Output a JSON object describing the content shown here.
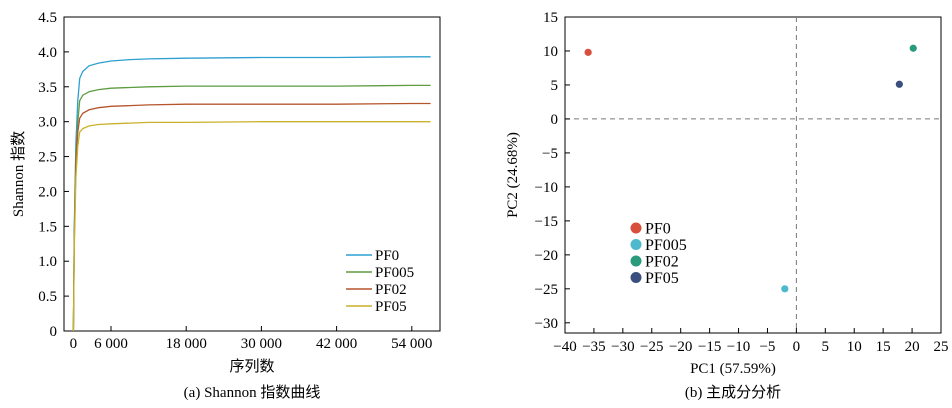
{
  "chart_data": [
    {
      "type": "line",
      "caption": "(a) Shannon 指数曲线",
      "xlabel": "序列数",
      "ylabel": "Shannon 指数",
      "xlim": [
        -1500,
        58500
      ],
      "ylim": [
        0,
        4.5
      ],
      "xticks": [
        0,
        6000,
        18000,
        30000,
        42000,
        54000
      ],
      "xtick_labels": [
        "0",
        "6 000",
        "18 000",
        "30 000",
        "42 000",
        "54 000"
      ],
      "yticks": [
        0,
        0.5,
        1.0,
        1.5,
        2.0,
        2.5,
        3.0,
        3.5,
        4.0,
        4.5
      ],
      "ytick_labels": [
        "0",
        "0.5",
        "1.0",
        "1.5",
        "2.0",
        "2.5",
        "3.0",
        "3.5",
        "4.0",
        "4.5"
      ],
      "grid": false,
      "legend_position": "bottom-right",
      "series": [
        {
          "name": "PF0",
          "color": "#2e9fd0",
          "x": [
            0,
            150,
            400,
            700,
            1000,
            1500,
            2500,
            4000,
            6000,
            9000,
            12000,
            18000,
            30000,
            42000,
            54000,
            57000
          ],
          "y": [
            0,
            1.5,
            2.7,
            3.3,
            3.62,
            3.72,
            3.8,
            3.84,
            3.87,
            3.89,
            3.9,
            3.91,
            3.92,
            3.92,
            3.93,
            3.93
          ]
        },
        {
          "name": "PF005",
          "color": "#5e9c40",
          "x": [
            0,
            150,
            400,
            700,
            1000,
            1500,
            2500,
            4000,
            6000,
            9000,
            12000,
            18000,
            30000,
            42000,
            54000,
            57000
          ],
          "y": [
            0,
            1.4,
            2.5,
            3.0,
            3.3,
            3.38,
            3.43,
            3.46,
            3.48,
            3.49,
            3.5,
            3.51,
            3.51,
            3.51,
            3.52,
            3.52
          ]
        },
        {
          "name": "PF02",
          "color": "#b5552c",
          "x": [
            0,
            150,
            400,
            700,
            1000,
            1500,
            2500,
            4000,
            6000,
            9000,
            12000,
            18000,
            30000,
            42000,
            54000,
            57000
          ],
          "y": [
            0,
            1.3,
            2.4,
            2.85,
            3.05,
            3.12,
            3.17,
            3.2,
            3.22,
            3.23,
            3.24,
            3.25,
            3.25,
            3.25,
            3.26,
            3.26
          ]
        },
        {
          "name": "PF05",
          "color": "#c8b12c",
          "x": [
            0,
            150,
            400,
            700,
            1000,
            1500,
            2500,
            4000,
            6000,
            9000,
            12000,
            18000,
            30000,
            42000,
            54000,
            57000
          ],
          "y": [
            0,
            1.2,
            2.2,
            2.65,
            2.85,
            2.9,
            2.94,
            2.96,
            2.97,
            2.98,
            2.99,
            2.99,
            3.0,
            3.0,
            3.0,
            3.0
          ]
        }
      ]
    },
    {
      "type": "scatter",
      "caption": "(b) 主成分分析",
      "xlabel": "PC1 (57.59%)",
      "ylabel": "PC2 (24.68%)",
      "xlim": [
        -40,
        25
      ],
      "ylim": [
        -31.5,
        15
      ],
      "xticks": [
        -40,
        -35,
        -30,
        -25,
        -20,
        -15,
        -10,
        -5,
        0,
        5,
        10,
        15,
        20,
        25
      ],
      "xtick_labels": [
        "−40",
        "−35",
        "−30",
        "−25",
        "−20",
        "−15",
        "−10",
        "−5",
        "0",
        "5",
        "10",
        "15",
        "20",
        "25"
      ],
      "yticks": [
        15,
        10,
        5,
        0,
        -5,
        -10,
        -15,
        -20,
        -25,
        -30
      ],
      "ytick_labels": [
        "15",
        "10",
        "5",
        "0",
        "−5",
        "−10",
        "−15",
        "−20",
        "−25",
        "−30"
      ],
      "grid": false,
      "reference_lines": {
        "x": 0,
        "y": 0,
        "style": "dashed"
      },
      "legend_position": "lower-left",
      "series": [
        {
          "name": "PF0",
          "color": "#d94f3d",
          "points": [
            [
              -36,
              9.8
            ]
          ]
        },
        {
          "name": "PF005",
          "color": "#4cb9cc",
          "points": [
            [
              -2,
              -25
            ]
          ]
        },
        {
          "name": "PF02",
          "color": "#2a9a7d",
          "points": [
            [
              20.2,
              10.4
            ]
          ]
        },
        {
          "name": "PF05",
          "color": "#3b4f7e",
          "points": [
            [
              17.8,
              5.1
            ]
          ]
        }
      ]
    }
  ]
}
